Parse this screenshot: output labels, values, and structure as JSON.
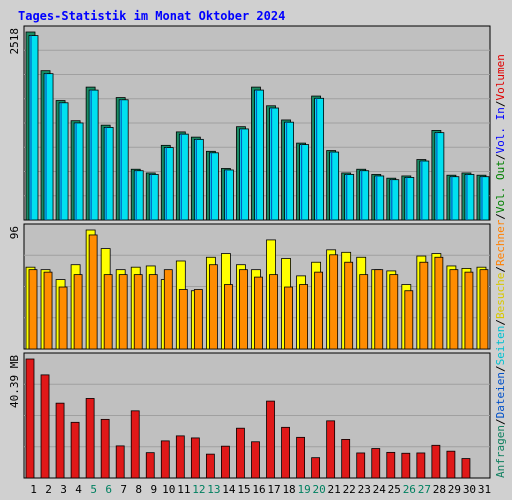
{
  "chart_data": {
    "type": "bar",
    "title": "Tages-Statistik im Monat Oktober 2024",
    "categories": [
      "1",
      "2",
      "3",
      "4",
      "5",
      "6",
      "7",
      "8",
      "9",
      "10",
      "11",
      "12",
      "13",
      "14",
      "15",
      "16",
      "17",
      "18",
      "19",
      "20",
      "21",
      "22",
      "23",
      "24",
      "25",
      "26",
      "27",
      "28",
      "29",
      "30",
      "31"
    ],
    "weekend_days": [
      "5",
      "6",
      "12",
      "13",
      "19",
      "20",
      "26",
      "27"
    ],
    "panels": [
      {
        "name": "requests",
        "ylabel": "2518",
        "ymax": 2518,
        "series": [
          {
            "name": "Anfragen",
            "color": "#1a8c64",
            "values": [
              2518,
              2000,
              1600,
              1330,
              1780,
              1270,
              1640,
              680,
              630,
              1000,
              1180,
              1110,
              920,
              690,
              1250,
              1780,
              1530,
              1340,
              1030,
              1660,
              930,
              630,
              680,
              610,
              560,
              590,
              810,
              1200,
              600,
              630,
              600
            ]
          },
          {
            "name": "Dateien",
            "color": "#00c8d8",
            "values": [
              2470,
              1960,
              1570,
              1300,
              1740,
              1240,
              1610,
              660,
              610,
              970,
              1150,
              1080,
              900,
              670,
              1220,
              1740,
              1500,
              1310,
              1010,
              1630,
              910,
              610,
              660,
              590,
              540,
              570,
              790,
              1170,
              580,
              610,
              580
            ]
          },
          {
            "name": "Seiten",
            "color": "#00e0f0",
            "values": [
              2470,
              1960,
              1570,
              1300,
              1740,
              1240,
              1610,
              660,
              610,
              970,
              1150,
              1080,
              900,
              670,
              1220,
              1740,
              1500,
              1310,
              1010,
              1630,
              910,
              610,
              660,
              590,
              540,
              570,
              790,
              1170,
              580,
              610,
              580
            ]
          }
        ]
      },
      {
        "name": "visits",
        "ylabel": "96",
        "ymax": 96,
        "series": [
          {
            "name": "Besuche",
            "color": "#ffff00",
            "values": [
              66,
              64,
              56,
              68,
              96,
              81,
              64,
              66,
              67,
              56,
              71,
              47,
              74,
              77,
              68,
              64,
              88,
              73,
              59,
              70,
              80,
              78,
              74,
              64,
              63,
              52,
              75,
              77,
              67,
              65,
              66
            ]
          },
          {
            "name": "Rechner",
            "color": "#ff8c00",
            "values": [
              64,
              62,
              50,
              60,
              92,
              60,
              60,
              60,
              60,
              64,
              48,
              48,
              68,
              52,
              64,
              58,
              60,
              50,
              52,
              62,
              76,
              70,
              60,
              64,
              60,
              47,
              70,
              74,
              64,
              62,
              64
            ]
          }
        ]
      },
      {
        "name": "volume",
        "ylabel": "40.39 MB",
        "ymax": 40.39,
        "series": [
          {
            "name": "Volumen",
            "color": "#e01818",
            "values": [
              40.39,
              35.0,
              25.4,
              18.9,
              27.0,
              19.9,
              10.9,
              22.8,
              8.6,
              12.6,
              14.3,
              13.6,
              8.1,
              10.8,
              16.9,
              12.3,
              26.1,
              17.2,
              13.8,
              6.9,
              19.4,
              13.1,
              8.5,
              10.0,
              8.7,
              8.4,
              8.5,
              11.1,
              9.1,
              6.6,
              null
            ]
          }
        ]
      }
    ],
    "right_labels": [
      {
        "text": "Anfragen",
        "color": "#108060"
      },
      {
        "text": "/",
        "color": "#000000"
      },
      {
        "text": "Dateien",
        "color": "#0050c8"
      },
      {
        "text": "/",
        "color": "#000000"
      },
      {
        "text": "Seiten",
        "color": "#00c0d0"
      },
      {
        "text": "/",
        "color": "#000000"
      },
      {
        "text": "Besuche",
        "color": "#d8c800"
      },
      {
        "text": "/",
        "color": "#000000"
      },
      {
        "text": "Rechner",
        "color": "#ff8000"
      },
      {
        "text": "/",
        "color": "#000000"
      },
      {
        "text": "Vol. Out",
        "color": "#008000"
      },
      {
        "text": "/",
        "color": "#000000"
      },
      {
        "text": "Vol. In",
        "color": "#0000ff"
      },
      {
        "text": "/",
        "color": "#000000"
      },
      {
        "text": "Volumen",
        "color": "#e00000"
      }
    ],
    "colors": {
      "title": "#0000ff",
      "plot_bg": "#c0c0c0",
      "page_bg": "#d0d0d0",
      "weekday_label": "#000000",
      "weekend_label": "#008060"
    }
  }
}
